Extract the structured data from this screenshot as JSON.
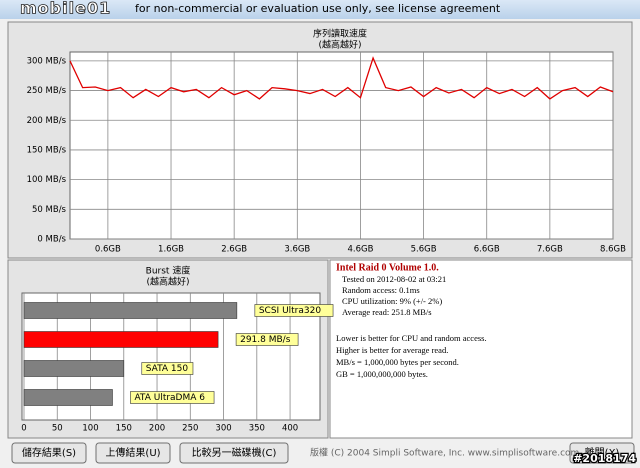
{
  "window": {
    "title": "for non-commercial or evaluation use only, see license agreement",
    "watermark": "mobile01",
    "stamp": "#2018174"
  },
  "read_chart": {
    "type": "line",
    "title": "序列讀取速度",
    "subtitle": "(越高越好)",
    "color": "#e00000",
    "x": [
      0,
      0.2,
      0.4,
      0.6,
      0.8,
      1.0,
      1.2,
      1.4,
      1.6,
      1.8,
      2.0,
      2.2,
      2.4,
      2.6,
      2.8,
      3.0,
      3.2,
      3.4,
      3.6,
      3.8,
      4.0,
      4.2,
      4.4,
      4.6,
      4.8,
      5.0,
      5.2,
      5.4,
      5.6,
      5.8,
      6.0,
      6.2,
      6.4,
      6.6,
      6.8,
      7.0,
      7.2,
      7.4,
      7.6,
      7.8,
      8.0,
      8.2,
      8.4,
      8.6
    ],
    "values": [
      300,
      255,
      256,
      250,
      255,
      238,
      252,
      240,
      255,
      248,
      252,
      238,
      255,
      243,
      250,
      236,
      255,
      253,
      250,
      245,
      252,
      240,
      255,
      238,
      305,
      255,
      250,
      256,
      240,
      255,
      246,
      252,
      238,
      255,
      245,
      252,
      240,
      255,
      236,
      250,
      255,
      240,
      256,
      248
    ],
    "xlim": [
      0,
      8.6
    ],
    "xticks": [
      {
        "value": 0.6,
        "label": "0.6GB"
      },
      {
        "value": 1.6,
        "label": "1.6GB"
      },
      {
        "value": 2.6,
        "label": "2.6GB"
      },
      {
        "value": 3.6,
        "label": "3.6GB"
      },
      {
        "value": 4.6,
        "label": "4.6GB"
      },
      {
        "value": 5.6,
        "label": "5.6GB"
      },
      {
        "value": 6.6,
        "label": "6.6GB"
      },
      {
        "value": 7.6,
        "label": "7.6GB"
      },
      {
        "value": 8.6,
        "label": "8.6GB"
      }
    ],
    "ylim": [
      0,
      315
    ],
    "yticks": [
      {
        "value": 0,
        "label": "0 MB/s"
      },
      {
        "value": 50,
        "label": "50 MB/s"
      },
      {
        "value": 100,
        "label": "100 MB/s"
      },
      {
        "value": 150,
        "label": "150 MB/s"
      },
      {
        "value": 200,
        "label": "200 MB/s"
      },
      {
        "value": 250,
        "label": "250 MB/s"
      },
      {
        "value": 300,
        "label": "300 MB/s"
      }
    ],
    "grid": true
  },
  "burst_chart": {
    "type": "bar",
    "title": "Burst 速度",
    "subtitle": "(越高越好)",
    "categories": [
      "SCSI Ultra320",
      null,
      "SATA 150",
      "ATA UltraDMA 6"
    ],
    "values": [
      320,
      291.8,
      150,
      133
    ],
    "value_labels": [
      null,
      "291.8 MB/s",
      null,
      null
    ],
    "colors": [
      "#808080",
      "#ff0000",
      "#808080",
      "#808080"
    ],
    "xlim": [
      0,
      445
    ],
    "xticks": [
      0,
      50,
      100,
      150,
      200,
      250,
      300,
      350,
      400
    ],
    "grid": true
  },
  "info": {
    "title": "Intel Raid 0 Volume 1.0.",
    "lines": [
      "Tested on 2012-08-02 at 03:21",
      "Random access: 0.1ms",
      "CPU utilization: 9% (+/- 2%)",
      "Average read: 251.8 MB/s"
    ],
    "notes": [
      "Lower is better for CPU and random access.",
      "Higher is better for average read.",
      "MB/s = 1,000,000 bytes per second.",
      "GB = 1,000,000,000 bytes."
    ]
  },
  "buttons": [
    "儲存結果(S)",
    "上傳結果(U)",
    "比較另一磁碟機(C)",
    "離開(X)"
  ],
  "footer": "版權 (C) 2004 Simpli Software, Inc. www.simplisoftware.com"
}
